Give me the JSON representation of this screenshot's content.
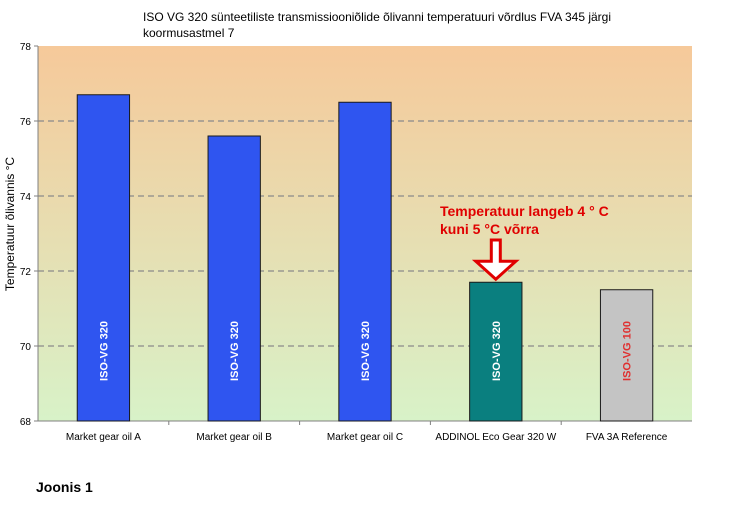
{
  "chart_data": {
    "type": "bar",
    "title": "ISO VG 320 sünteetiliste transmissiooniõlide õlivanni temperatuuri võrdlus FVA 345 järgi koormusastmel 7",
    "ylabel": "Temperatuur õlivannis °C",
    "xlabel": "",
    "ylim": [
      68,
      78
    ],
    "yticks": [
      68,
      70,
      72,
      74,
      76,
      78
    ],
    "grid": true,
    "categories": [
      "Market gear oil A",
      "Market gear oil B",
      "Market gear oil C",
      "ADDINOL Eco Gear 320 W",
      "FVA 3A Reference"
    ],
    "values": [
      76.7,
      75.6,
      76.5,
      71.7,
      71.5
    ],
    "bar_labels": [
      "ISO-VG 320",
      "ISO-VG 320",
      "ISO-VG 320",
      "ISO-VG 320",
      "ISO-VG 100"
    ],
    "bar_colors": [
      "#2f55f0",
      "#2f55f0",
      "#2f55f0",
      "#0a7f7f",
      "#c4c4c4"
    ],
    "bar_label_colors": [
      "#ffffff",
      "#ffffff",
      "#ffffff",
      "#ffffff",
      "#e03030"
    ],
    "annotation": {
      "text_line1": "Temperatuur langeb 4 ° C",
      "text_line2": "kuni 5 °C võrra",
      "color": "#e00000",
      "target_category": "ADDINOL Eco Gear 320 W"
    },
    "background_gradient": [
      "#f6c99a",
      "#d8f2c8"
    ]
  },
  "caption": "Joonis 1"
}
